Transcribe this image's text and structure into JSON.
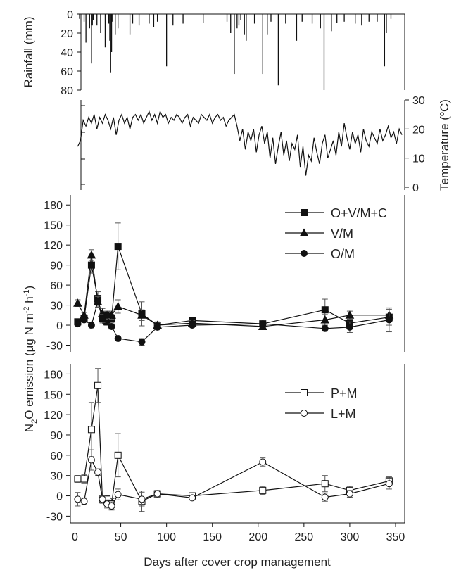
{
  "chart_data": [
    {
      "type": "bar",
      "panel": "rainfall",
      "ylabel": "Rainfall (mm)",
      "ylim": [
        80,
        0
      ],
      "yticks": [
        "0",
        "20",
        "40",
        "60",
        "80"
      ],
      "y_inverted": true,
      "xlim": [
        -5,
        360
      ],
      "color": "#111111",
      "x": [
        5,
        10,
        12,
        16,
        18,
        19,
        20,
        24,
        28,
        33,
        37,
        38,
        39,
        40,
        41,
        44,
        47,
        60,
        63,
        70,
        81,
        86,
        90,
        100,
        107,
        118,
        140,
        166,
        170,
        174,
        177,
        179,
        181,
        185,
        187,
        196,
        205,
        210,
        214,
        222,
        230,
        242,
        248,
        259,
        268,
        272,
        280,
        286,
        294,
        306,
        313,
        321,
        330,
        338,
        340,
        345
      ],
      "values": [
        5,
        8,
        30,
        15,
        52,
        12,
        6,
        12,
        20,
        35,
        10,
        28,
        62,
        40,
        8,
        22,
        15,
        22,
        10,
        12,
        10,
        14,
        8,
        55,
        12,
        10,
        9,
        8,
        20,
        63,
        15,
        12,
        6,
        22,
        28,
        10,
        63,
        22,
        8,
        75,
        10,
        28,
        8,
        10,
        15,
        80,
        18,
        9,
        8,
        10,
        12,
        8,
        8,
        55,
        20,
        5
      ]
    },
    {
      "type": "line",
      "panel": "temperature",
      "ylabel": "Temperature (°C)",
      "ylim": [
        0,
        30
      ],
      "yticks": [
        "0",
        "10",
        "20",
        "30"
      ],
      "xlim": [
        -5,
        360
      ],
      "color": "#111111",
      "x": [
        3,
        6,
        9,
        12,
        15,
        18,
        21,
        24,
        27,
        30,
        33,
        36,
        39,
        42,
        45,
        48,
        51,
        54,
        57,
        60,
        63,
        66,
        69,
        72,
        75,
        78,
        81,
        84,
        87,
        90,
        93,
        96,
        99,
        102,
        105,
        108,
        111,
        114,
        117,
        120,
        123,
        126,
        129,
        132,
        135,
        138,
        141,
        144,
        147,
        150,
        153,
        156,
        159,
        162,
        165,
        168,
        171,
        174,
        177,
        180,
        183,
        186,
        189,
        192,
        195,
        198,
        201,
        204,
        207,
        210,
        213,
        216,
        219,
        222,
        225,
        228,
        231,
        234,
        237,
        240,
        243,
        246,
        249,
        252,
        255,
        258,
        261,
        264,
        267,
        270,
        273,
        276,
        279,
        282,
        285,
        288,
        291,
        294,
        297,
        300,
        303,
        306,
        309,
        312,
        315,
        318,
        321,
        324,
        327,
        330,
        333,
        336,
        339,
        342,
        345,
        348,
        351,
        354,
        357
      ],
      "values": [
        14,
        16,
        23,
        21,
        24,
        22,
        25,
        20,
        24,
        22,
        25,
        23,
        20,
        24,
        18,
        23,
        25,
        22,
        24,
        20,
        24,
        25,
        23,
        25,
        22,
        24,
        26,
        23,
        25,
        22,
        26,
        24,
        25,
        22,
        24,
        23,
        25,
        24,
        22,
        24,
        25,
        21,
        24,
        23,
        22,
        25,
        24,
        23,
        25,
        22,
        24,
        25,
        23,
        24,
        21,
        23,
        24,
        25,
        21,
        16,
        20,
        13,
        19,
        16,
        20,
        12,
        18,
        21,
        15,
        19,
        10,
        17,
        8,
        14,
        19,
        11,
        16,
        9,
        15,
        13,
        18,
        7,
        14,
        4,
        11,
        9,
        17,
        12,
        8,
        15,
        18,
        10,
        13,
        16,
        11,
        19,
        14,
        22,
        17,
        13,
        19,
        15,
        18,
        12,
        20,
        16,
        14,
        19,
        17,
        15,
        20,
        16,
        18,
        21,
        17,
        19,
        15,
        20,
        18
      ]
    },
    {
      "type": "line",
      "panel": "n2o-upper",
      "ylim": [
        -40,
        195
      ],
      "yticks": [
        "-30",
        "0",
        "30",
        "60",
        "90",
        "120",
        "150",
        "180"
      ],
      "xlim": [
        -5,
        360
      ],
      "legend_position": "top-right",
      "series": [
        {
          "name": "O+V/M+C",
          "marker": "square",
          "filled": true,
          "x": [
            3,
            10,
            18,
            25,
            30,
            35,
            40,
            47,
            73,
            90,
            128,
            205,
            273,
            300,
            343
          ],
          "values": [
            5,
            10,
            90,
            40,
            10,
            5,
            10,
            118,
            17,
            0,
            7,
            2,
            23,
            3,
            12
          ],
          "errors": [
            3,
            4,
            12,
            10,
            8,
            5,
            6,
            35,
            18,
            5,
            5,
            4,
            16,
            6,
            12
          ]
        },
        {
          "name": "V/M",
          "marker": "triangle",
          "filled": true,
          "x": [
            3,
            10,
            18,
            25,
            30,
            35,
            40,
            47,
            73,
            90,
            128,
            205,
            273,
            300,
            343
          ],
          "values": [
            33,
            15,
            105,
            35,
            18,
            15,
            15,
            28,
            15,
            0,
            3,
            -2,
            8,
            15,
            15
          ],
          "errors": [
            5,
            4,
            8,
            8,
            7,
            6,
            6,
            10,
            8,
            4,
            4,
            4,
            8,
            6,
            8
          ]
        },
        {
          "name": "O/M",
          "marker": "circle",
          "filled": true,
          "x": [
            3,
            10,
            18,
            25,
            30,
            35,
            40,
            47,
            73,
            90,
            128,
            205,
            273,
            300,
            343
          ],
          "values": [
            2,
            8,
            0,
            35,
            10,
            15,
            -2,
            -20,
            -25,
            -3,
            0,
            2,
            -5,
            -3,
            8
          ],
          "errors": [
            3,
            3,
            4,
            8,
            6,
            5,
            4,
            3,
            5,
            4,
            3,
            3,
            4,
            8,
            18
          ]
        }
      ]
    },
    {
      "type": "line",
      "panel": "n2o-lower",
      "ylim": [
        -40,
        195
      ],
      "yticks": [
        "-30",
        "0",
        "30",
        "60",
        "90",
        "120",
        "150",
        "180"
      ],
      "xlim": [
        -5,
        360
      ],
      "xticks": [
        "0",
        "50",
        "100",
        "150",
        "200",
        "250",
        "300",
        "350"
      ],
      "legend_position": "top-right",
      "series": [
        {
          "name": "P+M",
          "marker": "square",
          "filled": false,
          "x": [
            3,
            10,
            18,
            25,
            30,
            35,
            40,
            47,
            73,
            90,
            128,
            205,
            273,
            300,
            343
          ],
          "values": [
            25,
            25,
            98,
            163,
            -5,
            -5,
            -12,
            60,
            -8,
            3,
            0,
            8,
            18,
            8,
            22
          ],
          "errors": [
            5,
            6,
            40,
            25,
            6,
            5,
            8,
            32,
            15,
            5,
            4,
            6,
            12,
            6,
            6
          ]
        },
        {
          "name": "L+M",
          "marker": "circle",
          "filled": false,
          "x": [
            3,
            10,
            18,
            25,
            30,
            35,
            40,
            47,
            73,
            90,
            128,
            205,
            273,
            300,
            343
          ],
          "values": [
            -5,
            -8,
            53,
            35,
            -5,
            -12,
            -15,
            2,
            -5,
            3,
            -3,
            50,
            -2,
            3,
            18
          ],
          "errors": [
            10,
            5,
            15,
            5,
            5,
            6,
            6,
            8,
            10,
            5,
            3,
            6,
            6,
            5,
            8
          ]
        }
      ]
    }
  ],
  "axes": {
    "rainfall_label": "Rainfall (mm)",
    "temperature_label": "Temperature (",
    "temperature_degree": "o",
    "temperature_unit": "C)",
    "n2o_label_part1": "N",
    "n2o_label_sub2": "2",
    "n2o_label_part2": "O emission (μg N m",
    "n2o_label_sup1": "-2",
    "n2o_label_part3": " h",
    "n2o_label_sup2": "-1",
    "n2o_label_part4": ")",
    "xlabel": "Days after cover crop management"
  }
}
